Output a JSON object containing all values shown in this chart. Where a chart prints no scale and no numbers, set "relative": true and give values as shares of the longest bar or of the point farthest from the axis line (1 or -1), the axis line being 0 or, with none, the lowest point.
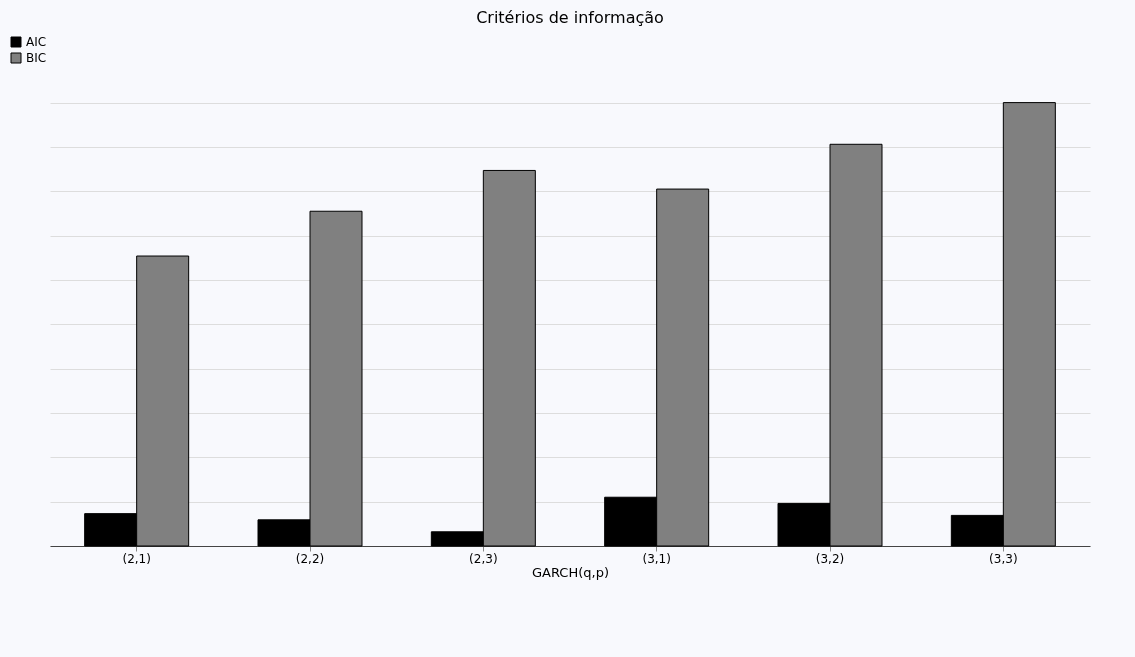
{
  "chart_data": {
    "type": "bar",
    "title": "Critérios de informação",
    "xlabel": "GARCH(q,p)",
    "categories": [
      "(2,1)",
      "(2,2)",
      "(2,3)",
      "(3,1)",
      "(3,2)",
      "(3,3)"
    ],
    "series": [
      {
        "name": "AIC",
        "color": "#000000",
        "values": [
          0.073,
          0.059,
          0.032,
          0.11,
          0.096,
          0.069
        ]
      },
      {
        "name": "BIC",
        "color": "#808080",
        "values": [
          0.654,
          0.755,
          0.847,
          0.805,
          0.906,
          1
        ]
      }
    ],
    "relative": true,
    "grid": "y",
    "legend": "top left"
  }
}
